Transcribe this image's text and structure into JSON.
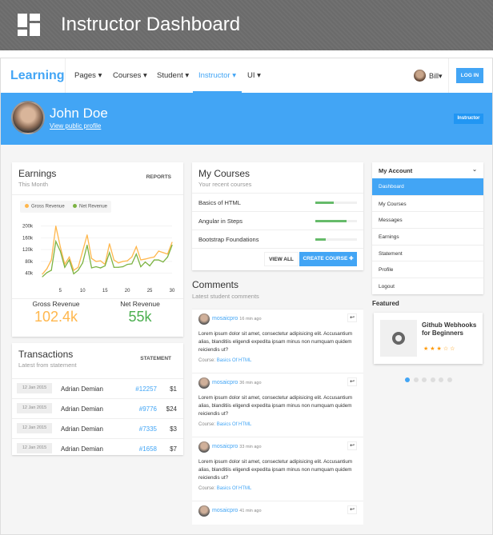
{
  "header": {
    "title": "Instructor Dashboard",
    "icon": "dashboard-grid-icon"
  },
  "nav": {
    "brand": "Learning",
    "items": [
      {
        "label": "Pages ▾"
      },
      {
        "label": "Courses ▾"
      },
      {
        "label": "Student ▾"
      },
      {
        "label": "Instructor ▾",
        "active": true
      },
      {
        "label": "UI ▾"
      }
    ],
    "user": "Bill▾",
    "login": "LOG IN"
  },
  "profile": {
    "name": "John Doe",
    "link": "View public profile",
    "badge": "Instructor"
  },
  "colors": {
    "accent": "#42a5f5",
    "gross": "#ffb74d",
    "net": "#7cb342"
  },
  "earnings": {
    "title": "Earnings",
    "subtitle": "This Month",
    "reports": "REPORTS",
    "gross_label": "Gross Revenue",
    "gross_value": "102.4k",
    "net_label": "Net Revenue",
    "net_value": "55k"
  },
  "chart_data": {
    "type": "line",
    "x": [
      1,
      2,
      3,
      4,
      5,
      6,
      7,
      8,
      9,
      10,
      11,
      12,
      13,
      14,
      15,
      16,
      17,
      18,
      19,
      20,
      21,
      22,
      23,
      24,
      25,
      26,
      27,
      28,
      29,
      30
    ],
    "series": [
      {
        "name": "Gross Revenue",
        "color": "#ffb74d",
        "values": [
          37,
          55,
          85,
          200,
          130,
          70,
          95,
          50,
          60,
          115,
          170,
          90,
          80,
          82,
          70,
          140,
          85,
          75,
          80,
          82,
          95,
          130,
          85,
          88,
          92,
          95,
          115,
          110,
          105,
          145
        ]
      },
      {
        "name": "Net Revenue",
        "color": "#7cb342",
        "values": [
          28,
          42,
          50,
          148,
          115,
          60,
          85,
          38,
          50,
          75,
          135,
          58,
          62,
          58,
          65,
          110,
          60,
          60,
          62,
          70,
          72,
          105,
          62,
          78,
          65,
          85,
          85,
          78,
          95,
          135
        ]
      }
    ],
    "yticks": [
      "40k",
      "80k",
      "120k",
      "160k",
      "200k"
    ],
    "ytick_values": [
      40,
      80,
      120,
      160,
      200
    ],
    "xticks": [
      5,
      10,
      15,
      20,
      25,
      30
    ],
    "ylim": [
      20,
      210
    ],
    "xlim": [
      1,
      30
    ],
    "legend": "top-left",
    "grid": true
  },
  "transactions": {
    "title": "Transactions",
    "subtitle": "Latest from statement",
    "statement": "STATEMENT",
    "rows": [
      {
        "date": "12 Jan 2015",
        "name": "Adrian Demian",
        "id": "#12257",
        "amount": "$1"
      },
      {
        "date": "12 Jan 2015",
        "name": "Adrian Demian",
        "id": "#9776",
        "amount": "$24"
      },
      {
        "date": "12 Jan 2015",
        "name": "Adrian Demian",
        "id": "#7335",
        "amount": "$3"
      },
      {
        "date": "12 Jan 2015",
        "name": "Adrian Demian",
        "id": "#1658",
        "amount": "$7"
      }
    ]
  },
  "courses": {
    "title": "My Courses",
    "subtitle": "Your recent courses",
    "items": [
      {
        "name": "Basics of HTML",
        "progress": 45
      },
      {
        "name": "Angular in Steps",
        "progress": 75
      },
      {
        "name": "Bootstrap Foundations",
        "progress": 25
      }
    ],
    "view_all": "VIEW ALL",
    "create": "CREATE COURSE ✚"
  },
  "comments": {
    "title": "Comments",
    "subtitle": "Latest student comments",
    "course_label": "Course:",
    "items": [
      {
        "user": "mosaicpro",
        "time": "16 min ago",
        "text": "Lorem ipsum dolor sit amet, consectetur adipisicing elit. Accusantium alias, blanditiis eligendi expedita ipsam minus non numquam quidem reiciendis ut?",
        "course": "Basics Of HTML"
      },
      {
        "user": "mosaicpro",
        "time": "36 min ago",
        "text": "Lorem ipsum dolor sit amet, consectetur adipisicing elit. Accusantium alias, blanditiis eligendi expedita ipsam minus non numquam quidem reiciendis ut?",
        "course": "Basics Of HTML"
      },
      {
        "user": "mosaicpro",
        "time": "33 min ago",
        "text": "Lorem ipsum dolor sit amet, consectetur adipisicing elit. Accusantium alias, blanditiis eligendi expedita ipsam minus non numquam quidem reiciendis ut?",
        "course": "Basics Of HTML"
      },
      {
        "user": "mosaicpro",
        "time": "41 min ago",
        "text": "",
        "course": ""
      }
    ]
  },
  "account": {
    "title": "My Account",
    "items": [
      {
        "label": "Dashboard",
        "active": true
      },
      {
        "label": "My Courses"
      },
      {
        "label": "Messages"
      },
      {
        "label": "Earnings"
      },
      {
        "label": "Statement"
      },
      {
        "label": "Profile"
      },
      {
        "label": "Logout"
      }
    ]
  },
  "featured": {
    "title": "Featured",
    "card_title": "Github Webhooks for Beginners",
    "rating": 3,
    "max_rating": 5,
    "stars": "★★★☆☆",
    "slides": 6,
    "active_slide": 1
  }
}
